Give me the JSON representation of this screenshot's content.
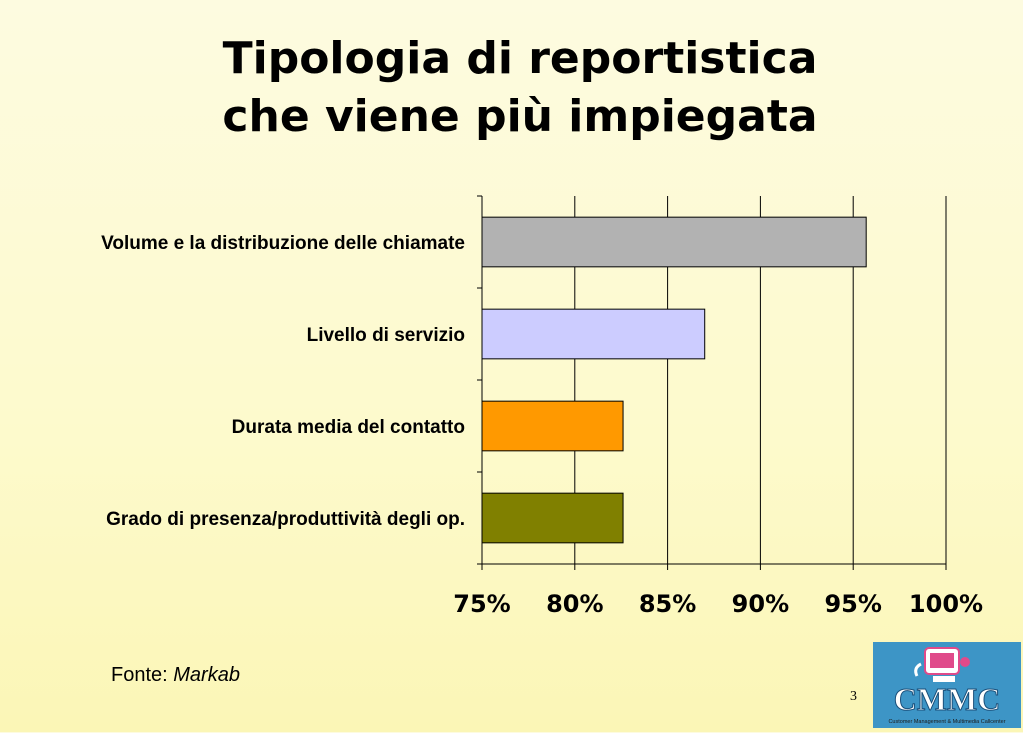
{
  "title": {
    "line1": "Tipologia di reportistica",
    "line2": "che viene più impiegata"
  },
  "source": {
    "label": "Fonte:",
    "name": "Markab"
  },
  "page_number": "3",
  "logo": {
    "text": "CMMC",
    "subtitle": "Customer Management & Multimedia Callcenter"
  },
  "chart_data": {
    "type": "bar",
    "orientation": "horizontal",
    "title": "",
    "xlabel": "",
    "ylabel": "",
    "categories": [
      "Volume e la distribuzione delle chiamate",
      "Livello di servizio",
      "Durata media del contatto",
      "Grado di presenza/produttività degli op."
    ],
    "values": [
      95.7,
      87.0,
      82.6,
      82.6
    ],
    "colors": [
      "#b2b2b2",
      "#ccccff",
      "#ff9900",
      "#808000"
    ],
    "xlim": [
      75,
      100
    ],
    "ticks": [
      {
        "value": 75,
        "label": "75%"
      },
      {
        "value": 80,
        "label": "80%"
      },
      {
        "value": 85,
        "label": "85%"
      },
      {
        "value": 90,
        "label": "90%"
      },
      {
        "value": 95,
        "label": "95%"
      },
      {
        "value": 100,
        "label": "100%"
      }
    ],
    "grid": true,
    "legend": "none"
  }
}
